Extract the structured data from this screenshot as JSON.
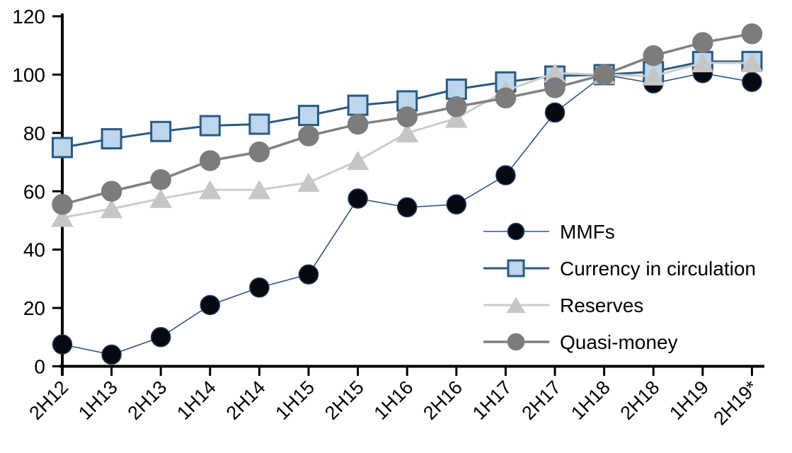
{
  "chart_data": {
    "type": "line",
    "title": "",
    "xlabel": "",
    "ylabel": "",
    "categories": [
      "2H12",
      "1H13",
      "2H13",
      "1H14",
      "2H14",
      "1H15",
      "2H15",
      "1H16",
      "2H16",
      "1H17",
      "2H17",
      "1H18",
      "2H18",
      "1H19",
      "2H19*"
    ],
    "y_axis": {
      "min": 0,
      "max": 120,
      "tick_interval": 20,
      "tick_labels": [
        "0",
        "20",
        "40",
        "60",
        "80",
        "100",
        "120"
      ]
    },
    "grid": "off",
    "x_label_rotation_deg": 45,
    "series": [
      {
        "name": "MMFs",
        "marker": "circle",
        "marker_fill": "#06090F",
        "marker_stroke": "#1F3864",
        "line_color": "#31548F",
        "line_width": 1.6,
        "marker_size": 27,
        "values": [
          7.5,
          4,
          10,
          21,
          27,
          31.5,
          57.5,
          54.5,
          55.5,
          65.5,
          87,
          100,
          97,
          100.5,
          97.5
        ]
      },
      {
        "name": "Currency in circulation",
        "marker": "square",
        "marker_fill": "#BDD6EC",
        "marker_stroke": "#275A84",
        "line_color": "#275A84",
        "line_width": 3,
        "marker_size": 27,
        "values": [
          75,
          78,
          80.5,
          82.5,
          83,
          86,
          89.5,
          91,
          95,
          97.5,
          99.5,
          100,
          101,
          104.5,
          104.5
        ]
      },
      {
        "name": "Reserves",
        "marker": "triangle",
        "marker_fill": "#C6C6C6",
        "marker_stroke": "#C6C6C6",
        "line_color": "#CCCCCC",
        "line_width": 3,
        "marker_size": 30,
        "values": [
          51,
          54,
          57.5,
          60.5,
          60.5,
          63,
          70.5,
          80,
          85,
          94.5,
          100.5,
          100,
          99.5,
          104,
          104
        ]
      },
      {
        "name": "Quasi-money",
        "marker": "circle",
        "marker_fill": "#7C7C7C",
        "marker_stroke": "#7C7C7C",
        "line_color": "#808080",
        "line_width": 3.5,
        "marker_size": 28,
        "values": [
          55.5,
          60,
          64,
          70.5,
          73.5,
          79,
          83,
          85.5,
          89,
          92,
          95.5,
          100,
          106.5,
          111,
          114
        ]
      }
    ],
    "legend": {
      "position": "middle-right",
      "items": [
        "MMFs",
        "Currency in circulation",
        "Reserves",
        "Quasi-money"
      ]
    },
    "axis_color": "#000000",
    "text_color": "#000000"
  }
}
